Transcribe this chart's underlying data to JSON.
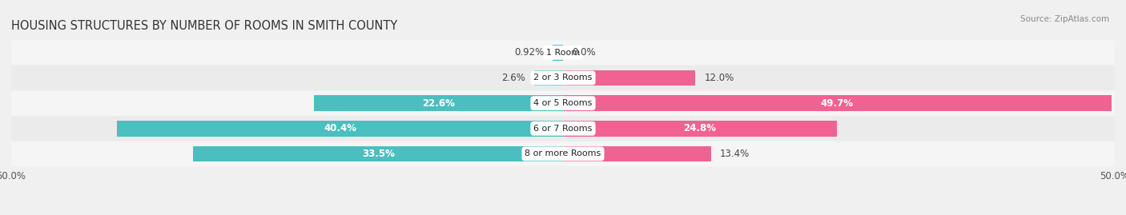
{
  "title": "HOUSING STRUCTURES BY NUMBER OF ROOMS IN SMITH COUNTY",
  "source": "Source: ZipAtlas.com",
  "categories": [
    "1 Room",
    "2 or 3 Rooms",
    "4 or 5 Rooms",
    "6 or 7 Rooms",
    "8 or more Rooms"
  ],
  "owner_values": [
    0.92,
    2.6,
    22.6,
    40.4,
    33.5
  ],
  "renter_values": [
    0.0,
    12.0,
    49.7,
    24.8,
    13.4
  ],
  "owner_color": "#4BBFC0",
  "renter_color": "#F06292",
  "owner_color_light": "#9ED8D8",
  "renter_color_light": "#F8BBD0",
  "xlim": [
    -50,
    50
  ],
  "bar_height": 0.62,
  "row_colors": [
    "#f5f5f5",
    "#ebebeb",
    "#f5f5f5",
    "#ebebeb",
    "#f5f5f5"
  ],
  "bg_color": "#f0f0f0",
  "title_fontsize": 10.5,
  "label_fontsize": 8.5,
  "category_fontsize": 8.0,
  "source_fontsize": 7.5
}
